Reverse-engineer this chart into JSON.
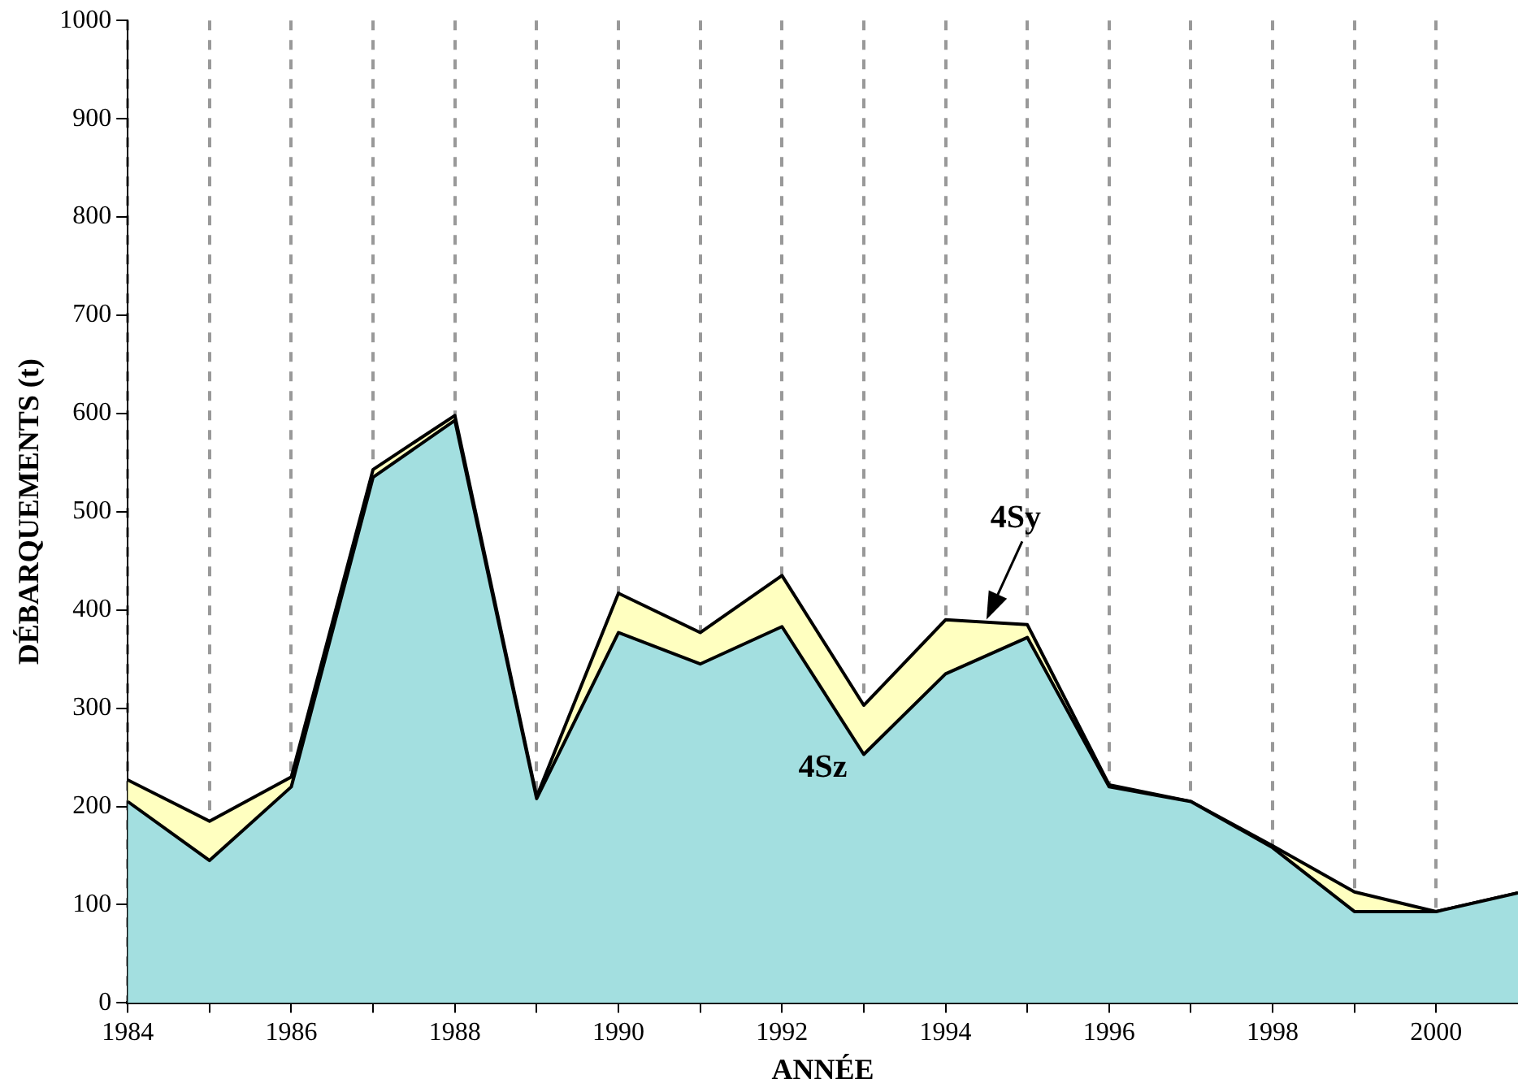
{
  "chart_data": {
    "type": "area",
    "stacked": true,
    "xlabel": "ANNÉE",
    "ylabel": "DÉBARQUEMENTS (t)",
    "x": [
      1984,
      1985,
      1986,
      1987,
      1988,
      1989,
      1990,
      1991,
      1992,
      1993,
      1994,
      1995,
      1996,
      1997,
      1998,
      1999,
      2000,
      2001
    ],
    "series": [
      {
        "name": "4Sz",
        "color": "#a3dfe0",
        "values": [
          205,
          145,
          220,
          535,
          593,
          208,
          377,
          345,
          383,
          253,
          335,
          372,
          220,
          205,
          158,
          93,
          93,
          112
        ]
      },
      {
        "name": "4Sy",
        "color": "#ffffc0",
        "values": [
          22,
          40,
          10,
          8,
          5,
          2,
          40,
          32,
          52,
          50,
          55,
          13,
          2,
          0,
          2,
          20,
          0,
          0
        ]
      }
    ],
    "xlim": [
      1984,
      2001
    ],
    "xticks": [
      1984,
      {
        "value": 1985,
        "label": null
      },
      1986,
      {
        "value": 1987,
        "label": null
      },
      1988,
      {
        "value": 1989,
        "label": null
      },
      1990,
      {
        "value": 1991,
        "label": null
      },
      1992,
      {
        "value": 1993,
        "label": null
      },
      1994,
      {
        "value": 1995,
        "label": null
      },
      1996,
      {
        "value": 1997,
        "label": null
      },
      1998,
      {
        "value": 1999,
        "label": null
      },
      2000
    ],
    "ylim": [
      0,
      1000
    ],
    "yticks": [
      0,
      100,
      200,
      300,
      400,
      500,
      600,
      700,
      800,
      900,
      1000
    ],
    "grid": "x"
  }
}
